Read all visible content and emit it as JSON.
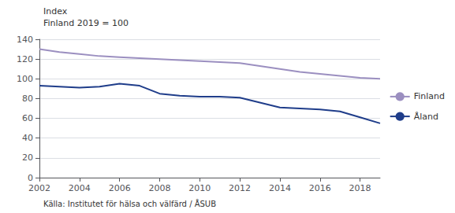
{
  "chart_data": {
    "type": "line",
    "title": "Index",
    "subtitle": "Finland 2019 = 100",
    "annotations": [
      "Källa: Institutet för hälsa och välfärd / ÅSUB"
    ],
    "x": [
      2002,
      2003,
      2004,
      2005,
      2006,
      2007,
      2008,
      2009,
      2010,
      2011,
      2012,
      2013,
      2014,
      2015,
      2016,
      2017,
      2018,
      2019
    ],
    "series": [
      {
        "name": "Finland",
        "color": "#9b8fc0",
        "values": [
          130,
          127,
          125,
          123,
          122,
          121,
          120,
          119,
          118,
          117,
          116,
          113,
          110,
          107,
          105,
          103,
          101,
          100
        ]
      },
      {
        "name": "Åland",
        "color": "#1f3d8a",
        "values": [
          93,
          92,
          91,
          92,
          95,
          93,
          85,
          83,
          82,
          82,
          81,
          76,
          71,
          70,
          69,
          67,
          61,
          55
        ]
      }
    ],
    "xlim": [
      2002,
      2019
    ],
    "xticks": [
      2002,
      2004,
      2006,
      2008,
      2010,
      2012,
      2014,
      2016,
      2018
    ],
    "ylim": [
      0,
      140
    ],
    "yticks": [
      0,
      20,
      40,
      60,
      80,
      100,
      120,
      140
    ],
    "grid": true,
    "legend": "right"
  }
}
